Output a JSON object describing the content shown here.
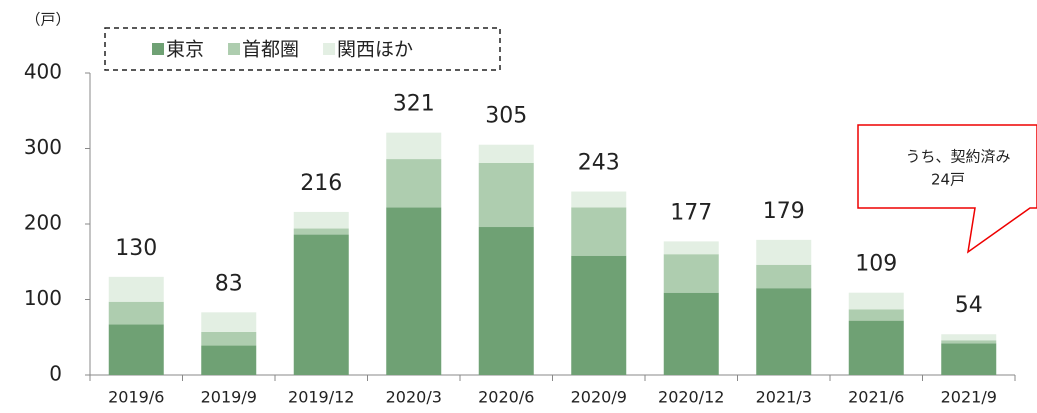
{
  "chart_data": {
    "type": "stacked_bar",
    "unit_label": "（戸）",
    "categories": [
      "2019/6",
      "2019/9",
      "2019/12",
      "2020/3",
      "2020/6",
      "2020/9",
      "2020/12",
      "2021/3",
      "2021/6",
      "2021/9"
    ],
    "series": [
      {
        "name": "東京",
        "color": "#6fa174",
        "values": [
          67,
          39,
          186,
          222,
          196,
          158,
          109,
          115,
          72,
          42
        ]
      },
      {
        "name": "首都圏",
        "color": "#aecdaf",
        "values": [
          30,
          18,
          8,
          64,
          85,
          64,
          51,
          31,
          15,
          4
        ]
      },
      {
        "name": "関西ほか",
        "color": "#e3efe3",
        "values": [
          33,
          26,
          22,
          35,
          24,
          21,
          17,
          33,
          22,
          8
        ]
      }
    ],
    "totals": [
      130,
      83,
      216,
      321,
      305,
      243,
      177,
      179,
      109,
      54
    ],
    "annotation": [
      "うち、契約済み",
      "24戸"
    ],
    "ylim": [
      0,
      400
    ],
    "yticks": [
      0,
      100,
      200,
      300,
      400
    ],
    "grid": false
  }
}
